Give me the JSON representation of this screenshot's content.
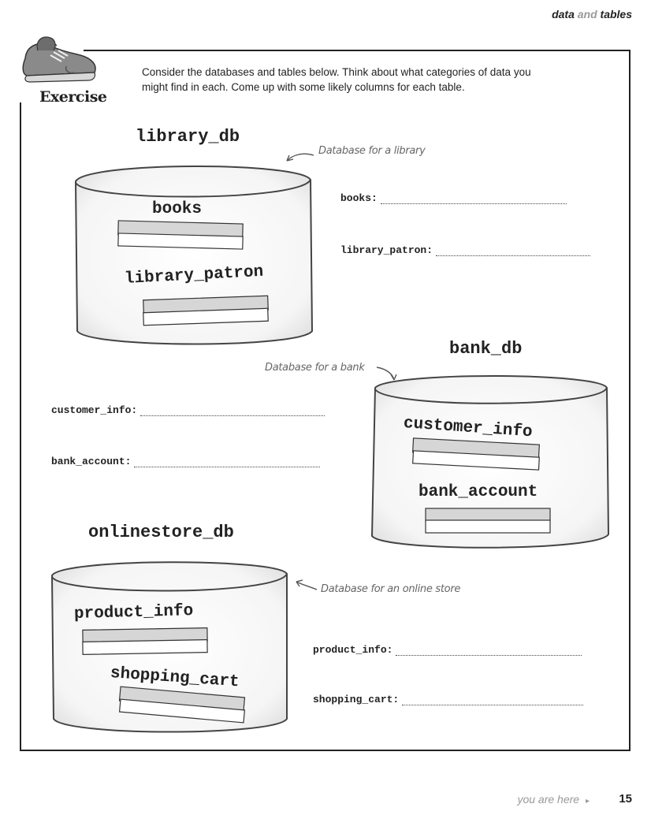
{
  "header": {
    "word1": "data",
    "word2": "and",
    "word3": "tables"
  },
  "exercise": {
    "label": "Exercise",
    "instructions": "Consider the databases and tables below. Think about what categories of data you might find in each. Come up with some likely columns for each table."
  },
  "databases": {
    "library": {
      "name": "library_db",
      "note": "Database for a library",
      "tables": [
        "books",
        "library_patron"
      ],
      "fields": [
        "books:",
        "library_patron:"
      ]
    },
    "bank": {
      "name": "bank_db",
      "note": "Database for a bank",
      "tables": [
        "customer_info",
        "bank_account"
      ],
      "fields": [
        "customer_info:",
        "bank_account:"
      ]
    },
    "online": {
      "name": "onlinestore_db",
      "note": "Database for an online store",
      "tables": [
        "product_info",
        "shopping_cart"
      ],
      "fields": [
        "product_info:",
        "shopping_cart:"
      ]
    }
  },
  "footer": {
    "you_are_here": "you are here",
    "page_number": "15"
  }
}
